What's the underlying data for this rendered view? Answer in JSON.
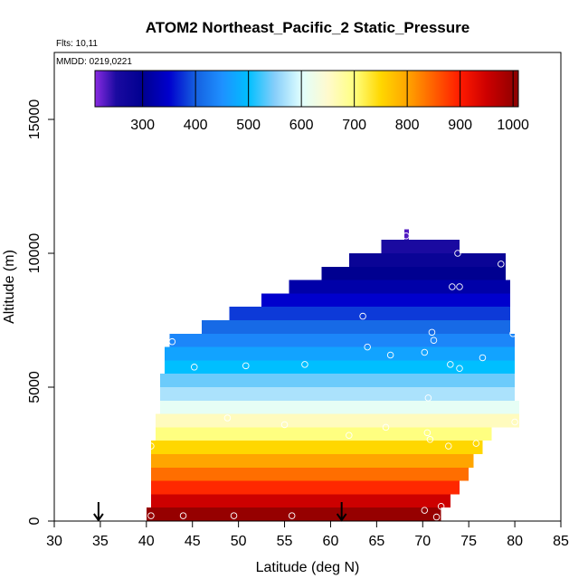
{
  "chart_data": {
    "type": "heatmap",
    "title": "ATOM2 Northeast_Pacific_2 Static_Pressure",
    "flights_note": "Flts: 10,11",
    "dates_note": "MMDD: 0219,0221",
    "xlabel": "Latitude (deg N)",
    "ylabel": "Altitude (m)",
    "xlim": [
      30,
      85
    ],
    "ylim": [
      0,
      17500
    ],
    "xticks": [
      30,
      35,
      40,
      45,
      50,
      55,
      60,
      65,
      70,
      75,
      80,
      85
    ],
    "yticks": [
      0,
      5000,
      10000,
      15000
    ],
    "colorbar": {
      "min": 210,
      "max": 1010,
      "ticks": [
        300,
        400,
        500,
        600,
        700,
        800,
        900,
        1000
      ],
      "stops": [
        {
          "v": 210,
          "color": "#8a2be2"
        },
        {
          "v": 250,
          "color": "#1a0aa0"
        },
        {
          "v": 300,
          "color": "#000090"
        },
        {
          "v": 350,
          "color": "#0000cd"
        },
        {
          "v": 400,
          "color": "#1560e0"
        },
        {
          "v": 450,
          "color": "#1e90ff"
        },
        {
          "v": 500,
          "color": "#00bfff"
        },
        {
          "v": 550,
          "color": "#87cefa"
        },
        {
          "v": 600,
          "color": "#e0ffff"
        },
        {
          "v": 650,
          "color": "#fffacd"
        },
        {
          "v": 700,
          "color": "#ffff80"
        },
        {
          "v": 750,
          "color": "#ffd700"
        },
        {
          "v": 800,
          "color": "#ffa500"
        },
        {
          "v": 850,
          "color": "#ff6000"
        },
        {
          "v": 900,
          "color": "#ff1a00"
        },
        {
          "v": 950,
          "color": "#cd0000"
        },
        {
          "v": 1010,
          "color": "#8b0000"
        }
      ]
    },
    "layers": [
      {
        "z0": 0,
        "z1": 500,
        "lat0": 40.0,
        "lat1": 72.0,
        "value": 1000
      },
      {
        "z0": 500,
        "z1": 1000,
        "lat0": 40.5,
        "lat1": 73.0,
        "value": 950
      },
      {
        "z0": 1000,
        "z1": 1500,
        "lat0": 40.5,
        "lat1": 74.0,
        "value": 890
      },
      {
        "z0": 1500,
        "z1": 2000,
        "lat0": 40.5,
        "lat1": 75.0,
        "value": 840
      },
      {
        "z0": 2000,
        "z1": 2500,
        "lat0": 40.5,
        "lat1": 75.5,
        "value": 800
      },
      {
        "z0": 2500,
        "z1": 3000,
        "lat0": 40.5,
        "lat1": 76.5,
        "value": 750
      },
      {
        "z0": 3000,
        "z1": 3500,
        "lat0": 41.0,
        "lat1": 77.5,
        "value": 700
      },
      {
        "z0": 3500,
        "z1": 4000,
        "lat0": 41.0,
        "lat1": 80.5,
        "value": 660
      },
      {
        "z0": 4000,
        "z1": 4500,
        "lat0": 41.5,
        "lat1": 80.5,
        "value": 610
      },
      {
        "z0": 4500,
        "z1": 5000,
        "lat0": 41.5,
        "lat1": 80.0,
        "value": 570
      },
      {
        "z0": 5000,
        "z1": 5500,
        "lat0": 41.5,
        "lat1": 80.0,
        "value": 540
      },
      {
        "z0": 5500,
        "z1": 6000,
        "lat0": 42.0,
        "lat1": 80.0,
        "value": 500
      },
      {
        "z0": 6000,
        "z1": 6500,
        "lat0": 42.0,
        "lat1": 80.0,
        "value": 470
      },
      {
        "z0": 6500,
        "z1": 7000,
        "lat0": 42.5,
        "lat1": 80.0,
        "value": 440
      },
      {
        "z0": 7000,
        "z1": 7500,
        "lat0": 46.0,
        "lat1": 79.5,
        "value": 410
      },
      {
        "z0": 7500,
        "z1": 8000,
        "lat0": 49.0,
        "lat1": 79.5,
        "value": 380
      },
      {
        "z0": 8000,
        "z1": 8500,
        "lat0": 52.5,
        "lat1": 79.5,
        "value": 350
      },
      {
        "z0": 8500,
        "z1": 9000,
        "lat0": 55.5,
        "lat1": 79.5,
        "value": 320
      },
      {
        "z0": 9000,
        "z1": 9500,
        "lat0": 59.0,
        "lat1": 79.0,
        "value": 300
      },
      {
        "z0": 9500,
        "z1": 10000,
        "lat0": 62.0,
        "lat1": 79.0,
        "value": 280
      },
      {
        "z0": 10000,
        "z1": 10500,
        "lat0": 65.5,
        "lat1": 74.0,
        "value": 250
      },
      {
        "z0": 10500,
        "z1": 10900,
        "lat0": 68.0,
        "lat1": 68.5,
        "value": 230
      }
    ],
    "markers": [
      {
        "lat": 34.8,
        "alt": 0
      },
      {
        "lat": 61.2,
        "alt": 0
      }
    ],
    "points": [
      {
        "lat": 40.5,
        "alt": 200
      },
      {
        "lat": 44.0,
        "alt": 200
      },
      {
        "lat": 49.5,
        "alt": 200
      },
      {
        "lat": 55.8,
        "alt": 200
      },
      {
        "lat": 70.2,
        "alt": 400
      },
      {
        "lat": 71.5,
        "alt": 150
      },
      {
        "lat": 72.0,
        "alt": 550
      },
      {
        "lat": 40.5,
        "alt": 2800
      },
      {
        "lat": 48.8,
        "alt": 3850
      },
      {
        "lat": 55.0,
        "alt": 3600
      },
      {
        "lat": 62.0,
        "alt": 3200
      },
      {
        "lat": 66.0,
        "alt": 3500
      },
      {
        "lat": 70.5,
        "alt": 3300
      },
      {
        "lat": 70.8,
        "alt": 3050
      },
      {
        "lat": 72.8,
        "alt": 2800
      },
      {
        "lat": 75.8,
        "alt": 2900
      },
      {
        "lat": 80.0,
        "alt": 3700
      },
      {
        "lat": 70.6,
        "alt": 4600
      },
      {
        "lat": 42.8,
        "alt": 6700
      },
      {
        "lat": 45.2,
        "alt": 5750
      },
      {
        "lat": 50.8,
        "alt": 5800
      },
      {
        "lat": 57.2,
        "alt": 5850
      },
      {
        "lat": 64.0,
        "alt": 6500
      },
      {
        "lat": 66.5,
        "alt": 6200
      },
      {
        "lat": 70.2,
        "alt": 6300
      },
      {
        "lat": 71.0,
        "alt": 7050
      },
      {
        "lat": 71.2,
        "alt": 6750
      },
      {
        "lat": 73.0,
        "alt": 5850
      },
      {
        "lat": 74.0,
        "alt": 5700
      },
      {
        "lat": 76.5,
        "alt": 6100
      },
      {
        "lat": 79.8,
        "alt": 7000
      },
      {
        "lat": 63.5,
        "alt": 7650
      },
      {
        "lat": 73.2,
        "alt": 8750
      },
      {
        "lat": 74.0,
        "alt": 8750
      },
      {
        "lat": 73.8,
        "alt": 10000
      },
      {
        "lat": 78.5,
        "alt": 9600
      },
      {
        "lat": 68.2,
        "alt": 10650
      }
    ]
  }
}
